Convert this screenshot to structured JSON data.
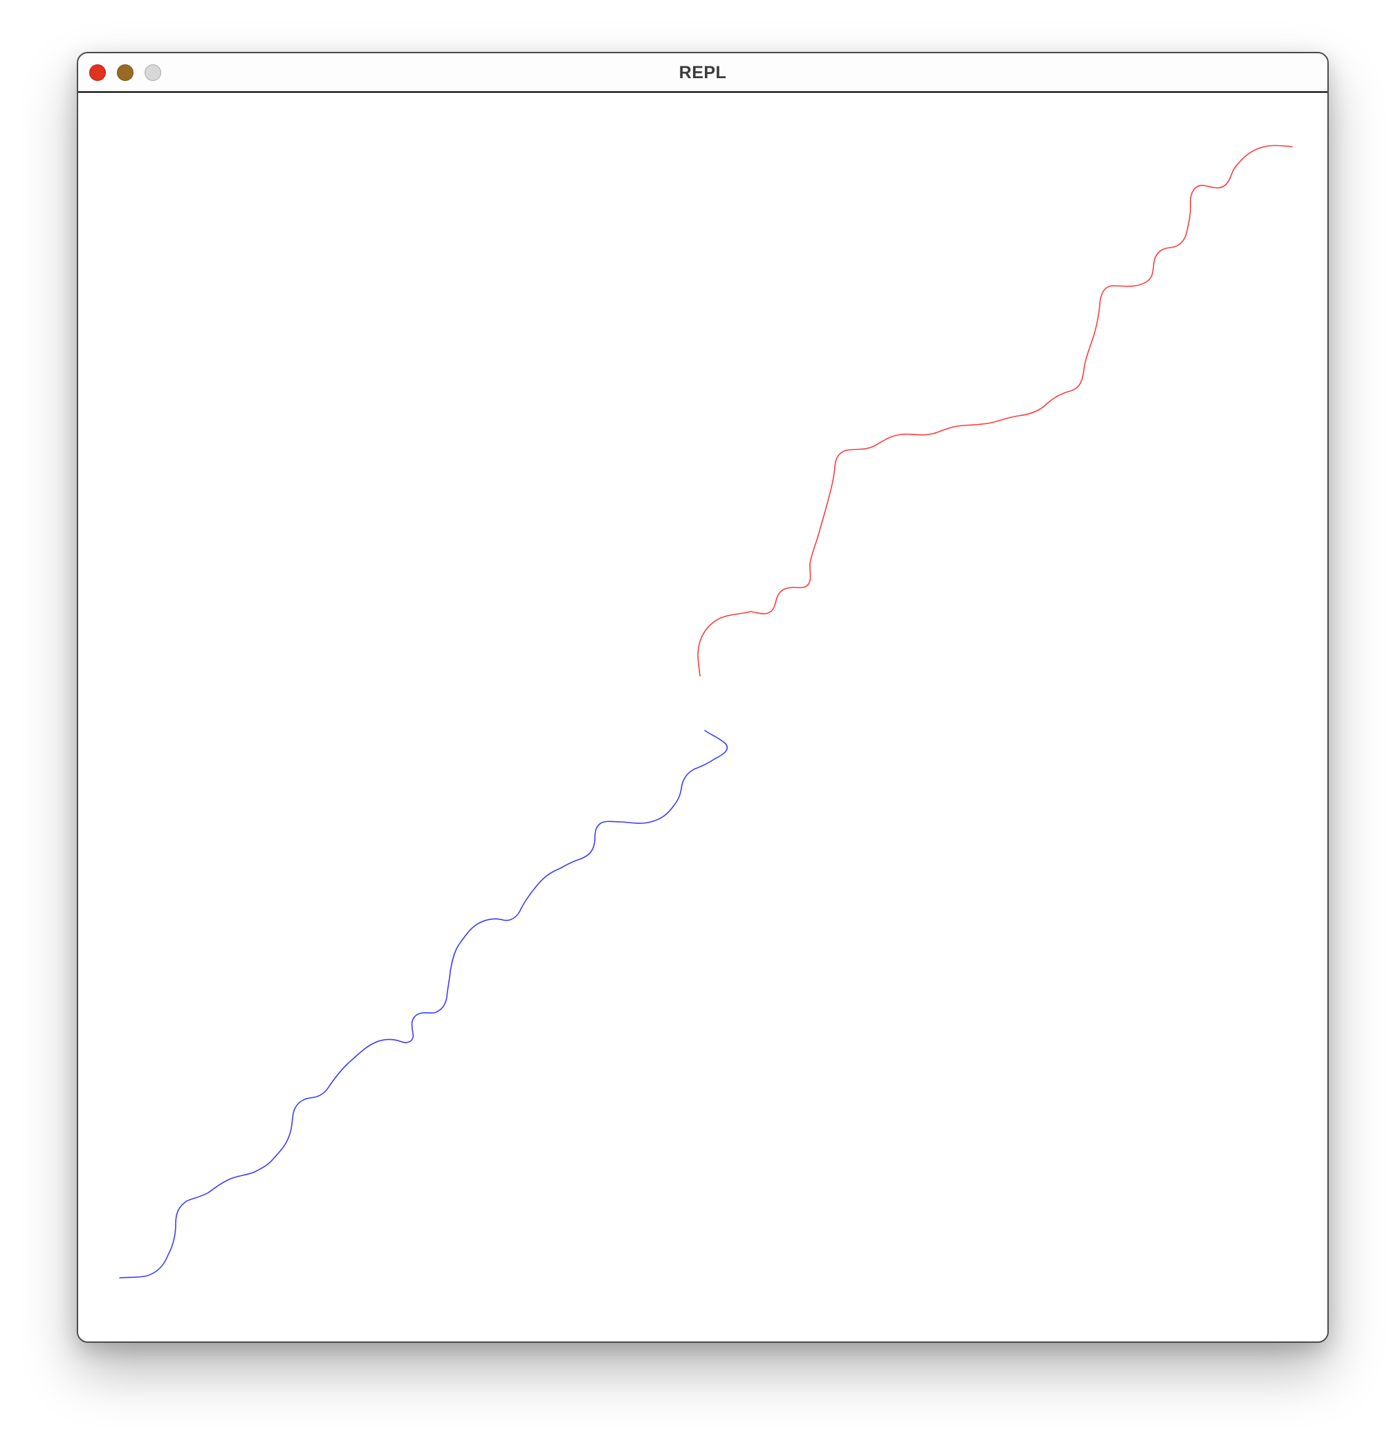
{
  "window": {
    "title": "REPL",
    "controls": [
      "close",
      "minimize",
      "maximize"
    ]
  },
  "canvas": {
    "background": "#ffffff",
    "paths": [
      {
        "color": "#ff3b3b",
        "description_key": "red-random-walk"
      },
      {
        "color": "#3b3bff",
        "description_key": "blue-random-walk"
      }
    ]
  }
}
